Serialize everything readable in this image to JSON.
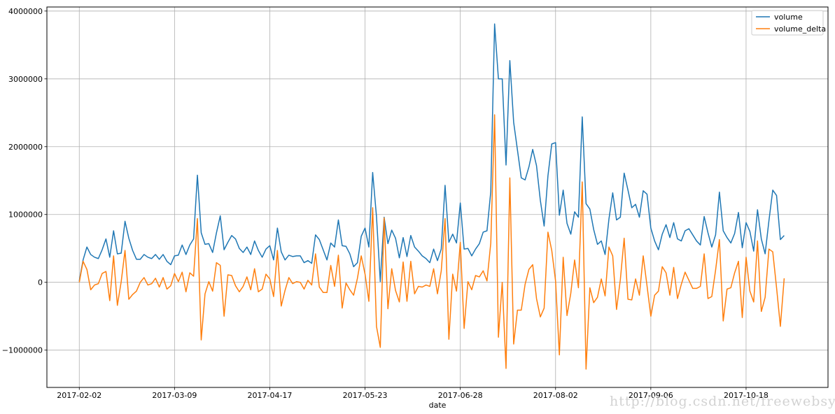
{
  "chart_data": {
    "type": "line",
    "xlabel": "date",
    "ylabel": "",
    "ylim": [
      -1550000,
      4060000
    ],
    "yticks": [
      -1000000,
      0,
      1000000,
      2000000,
      3000000,
      4000000
    ],
    "ytick_labels": [
      "−1000000",
      "0",
      "1000000",
      "2000000",
      "3000000",
      "4000000"
    ],
    "xlim": [
      -8.5,
      196.5
    ],
    "xticks": [
      0,
      25,
      50,
      75,
      100,
      125,
      150,
      175
    ],
    "xtick_labels": [
      "2017-02-02",
      "2017-03-09",
      "2017-04-17",
      "2017-05-23",
      "2017-06-28",
      "2017-08-02",
      "2017-09-06",
      "2017-10-18"
    ],
    "grid": true,
    "legend_position": "top-right",
    "series": [
      {
        "name": "volume",
        "color": "#1f77b4",
        "values": [
          20000,
          330000,
          520000,
          410000,
          370000,
          350000,
          480000,
          640000,
          370000,
          760000,
          420000,
          430000,
          900000,
          650000,
          470000,
          340000,
          340000,
          410000,
          370000,
          350000,
          410000,
          340000,
          410000,
          310000,
          260000,
          390000,
          400000,
          550000,
          410000,
          550000,
          640000,
          1580000,
          730000,
          560000,
          570000,
          440000,
          730000,
          980000,
          480000,
          590000,
          690000,
          640000,
          500000,
          440000,
          520000,
          410000,
          610000,
          470000,
          370000,
          490000,
          540000,
          330000,
          800000,
          450000,
          330000,
          400000,
          380000,
          390000,
          390000,
          290000,
          320000,
          280000,
          700000,
          630000,
          480000,
          330000,
          580000,
          520000,
          920000,
          540000,
          530000,
          420000,
          230000,
          290000,
          680000,
          800000,
          520000,
          1620000,
          970000,
          10000,
          960000,
          570000,
          770000,
          650000,
          360000,
          660000,
          380000,
          690000,
          520000,
          460000,
          390000,
          350000,
          290000,
          490000,
          320000,
          490000,
          1430000,
          590000,
          710000,
          580000,
          1170000,
          490000,
          500000,
          390000,
          490000,
          570000,
          740000,
          760000,
          1340000,
          3810000,
          3000000,
          3000000,
          1730000,
          3270000,
          2360000,
          1950000,
          1540000,
          1510000,
          1700000,
          1960000,
          1720000,
          1210000,
          830000,
          1570000,
          2040000,
          2060000,
          990000,
          1360000,
          870000,
          710000,
          1040000,
          960000,
          2440000,
          1160000,
          1080000,
          780000,
          560000,
          610000,
          410000,
          930000,
          1320000,
          920000,
          960000,
          1610000,
          1360000,
          1100000,
          1150000,
          960000,
          1350000,
          1300000,
          800000,
          610000,
          480000,
          710000,
          850000,
          660000,
          880000,
          640000,
          610000,
          760000,
          790000,
          700000,
          610000,
          550000,
          970000,
          730000,
          520000,
          700000,
          1330000,
          760000,
          660000,
          580000,
          720000,
          1030000,
          510000,
          880000,
          750000,
          460000,
          1070000,
          640000,
          420000,
          910000,
          1360000,
          1280000,
          630000,
          690000
        ]
      },
      {
        "name": "volume_delta",
        "color": "#ff7f0e",
        "values": [
          0,
          310000,
          190000,
          -110000,
          -40000,
          -20000,
          130000,
          160000,
          -270000,
          390000,
          -340000,
          10000,
          470000,
          -250000,
          -180000,
          -130000,
          0,
          70000,
          -40000,
          -20000,
          60000,
          -70000,
          70000,
          -100000,
          -50000,
          130000,
          10000,
          150000,
          -140000,
          140000,
          90000,
          940000,
          -850000,
          -170000,
          10000,
          -130000,
          290000,
          250000,
          -500000,
          110000,
          100000,
          -50000,
          -140000,
          -60000,
          80000,
          -110000,
          200000,
          -140000,
          -100000,
          120000,
          50000,
          -210000,
          470000,
          -350000,
          -120000,
          70000,
          -20000,
          10000,
          0,
          -100000,
          30000,
          -40000,
          420000,
          -70000,
          -150000,
          -150000,
          250000,
          -60000,
          400000,
          -380000,
          -10000,
          -110000,
          -190000,
          60000,
          390000,
          120000,
          -280000,
          1100000,
          -650000,
          -960000,
          950000,
          -390000,
          200000,
          -120000,
          -290000,
          300000,
          -280000,
          310000,
          -170000,
          -60000,
          -70000,
          -40000,
          -60000,
          200000,
          -170000,
          170000,
          940000,
          -840000,
          120000,
          -130000,
          590000,
          -680000,
          10000,
          -110000,
          100000,
          80000,
          170000,
          20000,
          580000,
          2470000,
          -810000,
          0,
          -1270000,
          1540000,
          -910000,
          -410000,
          -410000,
          -30000,
          190000,
          260000,
          -240000,
          -510000,
          -380000,
          740000,
          470000,
          20000,
          -1070000,
          370000,
          -490000,
          -160000,
          330000,
          -80000,
          1480000,
          -1280000,
          -80000,
          -300000,
          -220000,
          50000,
          -200000,
          520000,
          390000,
          -400000,
          40000,
          650000,
          -250000,
          -260000,
          50000,
          -190000,
          390000,
          -50000,
          -500000,
          -190000,
          -130000,
          230000,
          140000,
          -190000,
          220000,
          -240000,
          -30000,
          150000,
          30000,
          -90000,
          -90000,
          -60000,
          420000,
          -240000,
          -210000,
          180000,
          630000,
          -570000,
          -100000,
          -80000,
          140000,
          310000,
          -520000,
          370000,
          -130000,
          -290000,
          610000,
          -430000,
          -220000,
          490000,
          450000,
          -80000,
          -650000,
          60000
        ]
      }
    ],
    "watermark": "http://blog.csdn.net/freewebsys"
  }
}
